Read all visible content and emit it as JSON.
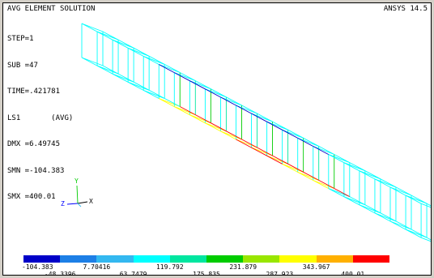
{
  "header": {
    "title": "AVG ELEMENT SOLUTION",
    "version": "ANSYS 14.5"
  },
  "status": [
    "STEP=1",
    "SUB =47",
    "TIME=.421781",
    "LS1       (AVG)",
    "DMX =6.49745",
    "SMN =-104.383",
    "SMX =400.01"
  ],
  "axis_triad": {
    "x": "X",
    "y": "Y",
    "z": "Z"
  },
  "legend": {
    "colors": [
      "#0000c8",
      "#1d7fe6",
      "#33b8f0",
      "#00ffff",
      "#00e6a0",
      "#00cc00",
      "#99e600",
      "#ffff00",
      "#ffb000",
      "#ff0000"
    ],
    "top_labels": [
      "-104.383",
      "7.70416",
      "119.792",
      "231.879",
      "343.967"
    ],
    "bottom_labels": [
      "-48.3396",
      "63.7479",
      "175.835",
      "287.923",
      "400.01"
    ]
  }
}
